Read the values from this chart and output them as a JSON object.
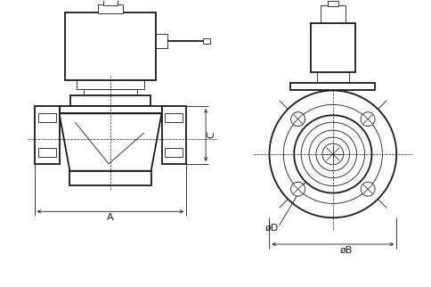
{
  "bg_color": "#ffffff",
  "line_color": "#1a1a1a",
  "thin_line": 0.6,
  "medium_line": 1.3,
  "thick_line": 2.0,
  "dim_line": 0.6,
  "label_A": "A",
  "label_C": "C",
  "label_phiD": "øD",
  "label_phiB": "øB",
  "font_size": 8,
  "font_size_sm": 7
}
